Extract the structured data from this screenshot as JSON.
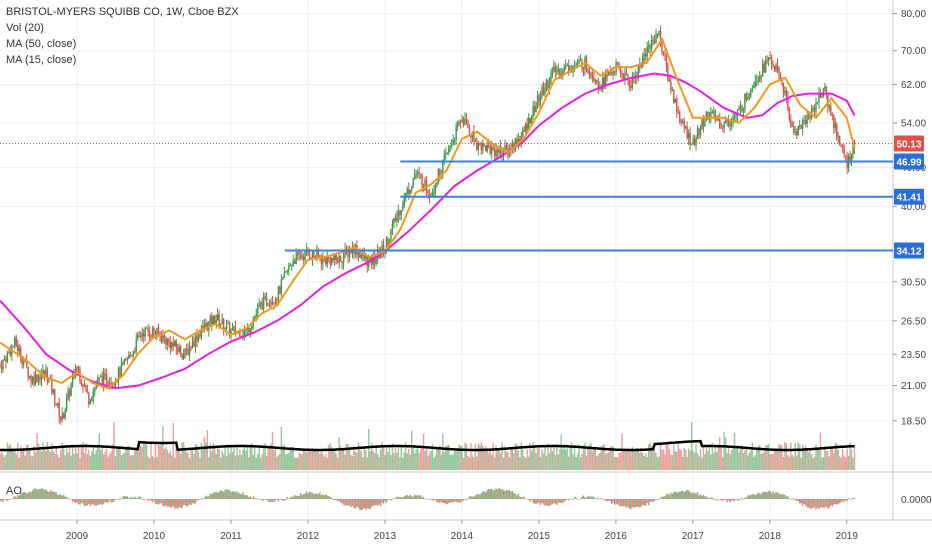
{
  "legend": {
    "title": "BRISTOL-MYERS SQUIBB CO, 1W, Cboe BZX",
    "vol": "Vol (20)",
    "ma50": "MA (50, close)",
    "ma15": "MA (15, close)"
  },
  "ao_label": "AO",
  "ao_value": "0.0000",
  "colors": {
    "up": "#3a9a4a",
    "down": "#e0504a",
    "ma50": "#e81ee3",
    "ma15": "#f39a1c",
    "hline": "#3b82e0",
    "price_badge": "#e0504a",
    "level_badge": "#2b6fd6",
    "volume_ma": "#000000"
  },
  "chart_data": {
    "type": "candlestick",
    "scale": "log",
    "ylim": [
      15.5,
      84
    ],
    "price_ticks": [
      "80.00",
      "70.00",
      "62.00",
      "54.00",
      "46.00",
      "40.00",
      "30.50",
      "26.50",
      "23.50",
      "21.00",
      "18.50"
    ],
    "x_ticks": [
      "2009",
      "2010",
      "2011",
      "2012",
      "2013",
      "2014",
      "2015",
      "2016",
      "2017",
      "2018",
      "2019"
    ],
    "x_range_years": [
      2008.0,
      2019.6
    ],
    "current_price": {
      "label": "50.13",
      "value": 50.13
    },
    "levels": [
      {
        "label": "46.99",
        "value": 46.99,
        "from_year": 2013.2
      },
      {
        "label": "41.41",
        "value": 41.41,
        "from_year": 2013.2
      },
      {
        "label": "34.12",
        "value": 34.12,
        "from_year": 2011.7
      }
    ],
    "series": [
      {
        "name": "MA (50, close)",
        "role": "ma50",
        "points": [
          [
            2008.0,
            28.5
          ],
          [
            2008.3,
            26
          ],
          [
            2008.6,
            23.5
          ],
          [
            2008.9,
            22.2
          ],
          [
            2009.2,
            21.3
          ],
          [
            2009.5,
            20.8
          ],
          [
            2009.8,
            21
          ],
          [
            2010.1,
            21.6
          ],
          [
            2010.4,
            22.3
          ],
          [
            2010.7,
            23.5
          ],
          [
            2011.0,
            24.6
          ],
          [
            2011.3,
            25.4
          ],
          [
            2011.6,
            26.5
          ],
          [
            2011.9,
            28
          ],
          [
            2012.2,
            30
          ],
          [
            2012.5,
            31.5
          ],
          [
            2012.8,
            32.8
          ],
          [
            2013.0,
            34
          ],
          [
            2013.3,
            36.5
          ],
          [
            2013.6,
            39.5
          ],
          [
            2013.9,
            43
          ],
          [
            2014.2,
            45.5
          ],
          [
            2014.5,
            47.8
          ],
          [
            2014.8,
            50.5
          ],
          [
            2015.0,
            53.5
          ],
          [
            2015.3,
            57
          ],
          [
            2015.6,
            60
          ],
          [
            2015.9,
            62
          ],
          [
            2016.2,
            63.5
          ],
          [
            2016.5,
            64.5
          ],
          [
            2016.7,
            64
          ],
          [
            2016.9,
            62.5
          ],
          [
            2017.1,
            60.5
          ],
          [
            2017.4,
            57
          ],
          [
            2017.7,
            55
          ],
          [
            2017.9,
            55.5
          ],
          [
            2018.1,
            58
          ],
          [
            2018.3,
            59.5
          ],
          [
            2018.5,
            60
          ],
          [
            2018.8,
            60
          ],
          [
            2019.0,
            58.5
          ],
          [
            2019.1,
            55.5
          ]
        ]
      },
      {
        "name": "MA (15, close)",
        "role": "ma15",
        "points": [
          [
            2008.0,
            24.5
          ],
          [
            2008.3,
            23.2
          ],
          [
            2008.6,
            21.6
          ],
          [
            2008.8,
            21.2
          ],
          [
            2009.0,
            22
          ],
          [
            2009.2,
            21.2
          ],
          [
            2009.4,
            20.8
          ],
          [
            2009.6,
            21.8
          ],
          [
            2009.8,
            23.6
          ],
          [
            2010.0,
            25
          ],
          [
            2010.2,
            25.6
          ],
          [
            2010.4,
            24.8
          ],
          [
            2010.6,
            25.6
          ],
          [
            2010.8,
            26.2
          ],
          [
            2011.0,
            25.2
          ],
          [
            2011.2,
            25.8
          ],
          [
            2011.4,
            27.2
          ],
          [
            2011.6,
            28
          ],
          [
            2011.8,
            30.5
          ],
          [
            2012.0,
            33
          ],
          [
            2012.2,
            33.3
          ],
          [
            2012.4,
            33.8
          ],
          [
            2012.6,
            34.5
          ],
          [
            2012.8,
            33.3
          ],
          [
            2013.0,
            34
          ],
          [
            2013.2,
            36.8
          ],
          [
            2013.4,
            42
          ],
          [
            2013.6,
            43.3
          ],
          [
            2013.8,
            45.5
          ],
          [
            2014.0,
            51
          ],
          [
            2014.2,
            52.3
          ],
          [
            2014.4,
            50
          ],
          [
            2014.6,
            48.5
          ],
          [
            2014.8,
            51
          ],
          [
            2015.0,
            56
          ],
          [
            2015.2,
            63
          ],
          [
            2015.4,
            65
          ],
          [
            2015.6,
            67
          ],
          [
            2015.8,
            64
          ],
          [
            2016.0,
            66
          ],
          [
            2016.2,
            66
          ],
          [
            2016.4,
            67
          ],
          [
            2016.6,
            73
          ],
          [
            2016.8,
            63
          ],
          [
            2017.0,
            55
          ],
          [
            2017.2,
            55
          ],
          [
            2017.4,
            55
          ],
          [
            2017.6,
            54
          ],
          [
            2017.8,
            57
          ],
          [
            2018.0,
            62
          ],
          [
            2018.2,
            63.5
          ],
          [
            2018.4,
            57.5
          ],
          [
            2018.6,
            55
          ],
          [
            2018.8,
            59
          ],
          [
            2019.0,
            55
          ],
          [
            2019.1,
            49.3
          ]
        ]
      },
      {
        "name": "close",
        "role": "price",
        "points": [
          [
            2008.0,
            22.5
          ],
          [
            2008.2,
            24.5
          ],
          [
            2008.4,
            21.5
          ],
          [
            2008.6,
            22
          ],
          [
            2008.8,
            18.5
          ],
          [
            2009.0,
            22.5
          ],
          [
            2009.15,
            20
          ],
          [
            2009.3,
            21.5
          ],
          [
            2009.5,
            21.5
          ],
          [
            2009.7,
            23.5
          ],
          [
            2009.85,
            25.5
          ],
          [
            2010.0,
            25.5
          ],
          [
            2010.2,
            24.5
          ],
          [
            2010.4,
            23.5
          ],
          [
            2010.6,
            25.5
          ],
          [
            2010.8,
            26.8
          ],
          [
            2011.0,
            25.5
          ],
          [
            2011.2,
            25.5
          ],
          [
            2011.4,
            28.2
          ],
          [
            2011.6,
            29
          ],
          [
            2011.8,
            33
          ],
          [
            2012.0,
            33.8
          ],
          [
            2012.2,
            33
          ],
          [
            2012.4,
            33
          ],
          [
            2012.6,
            34.5
          ],
          [
            2012.8,
            32.5
          ],
          [
            2013.0,
            34.5
          ],
          [
            2013.2,
            39.8
          ],
          [
            2013.4,
            45
          ],
          [
            2013.6,
            42
          ],
          [
            2013.8,
            48
          ],
          [
            2014.0,
            55
          ],
          [
            2014.2,
            50
          ],
          [
            2014.4,
            49
          ],
          [
            2014.6,
            48.8
          ],
          [
            2014.8,
            52
          ],
          [
            2015.0,
            59
          ],
          [
            2015.2,
            65
          ],
          [
            2015.4,
            66
          ],
          [
            2015.6,
            67
          ],
          [
            2015.8,
            62
          ],
          [
            2016.0,
            66
          ],
          [
            2016.2,
            62
          ],
          [
            2016.4,
            70
          ],
          [
            2016.55,
            75
          ],
          [
            2016.7,
            62
          ],
          [
            2016.85,
            54
          ],
          [
            2017.0,
            50
          ],
          [
            2017.2,
            56
          ],
          [
            2017.4,
            53.5
          ],
          [
            2017.6,
            56
          ],
          [
            2017.8,
            63
          ],
          [
            2018.0,
            68
          ],
          [
            2018.15,
            63
          ],
          [
            2018.3,
            52
          ],
          [
            2018.5,
            55
          ],
          [
            2018.7,
            61
          ],
          [
            2018.85,
            53
          ],
          [
            2019.0,
            46.5
          ],
          [
            2019.1,
            50.1
          ]
        ]
      }
    ]
  }
}
